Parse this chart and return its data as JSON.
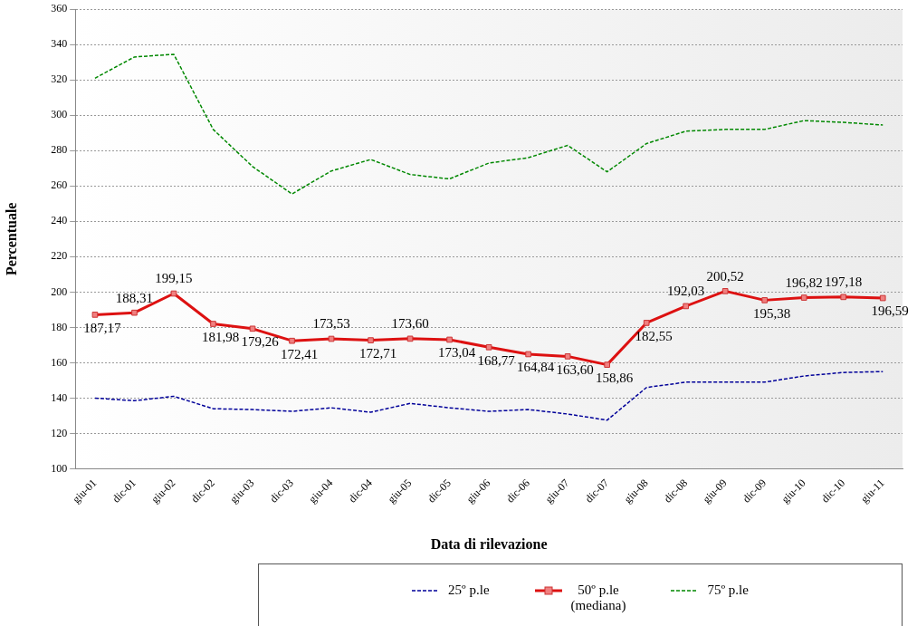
{
  "chart_data": {
    "type": "line",
    "xlabel": "Data di rilevazione",
    "ylabel": "Percentuale",
    "categories": [
      "giu-01",
      "dic-01",
      "giu-02",
      "dic-02",
      "giu-03",
      "dic-03",
      "giu-04",
      "dic-04",
      "giu-05",
      "dic-05",
      "giu-06",
      "dic-06",
      "giu-07",
      "dic-07",
      "giu-08",
      "dic-08",
      "giu-09",
      "dic-09",
      "giu-10",
      "dic-10",
      "giu-11"
    ],
    "series": [
      {
        "name": "25º p.le",
        "color": "#000099",
        "line_style": "dashed",
        "marker": "none",
        "values": [
          140,
          138.5,
          141,
          134,
          133.5,
          132.5,
          134.5,
          132,
          137,
          134.5,
          132.5,
          133.5,
          131,
          127.5,
          146,
          149,
          149,
          149,
          152.5,
          154.5,
          155
        ]
      },
      {
        "name": "50º p.le\n(mediana)",
        "color": "#dd1111",
        "line_style": "solid",
        "marker": "square",
        "values": [
          187.17,
          188.31,
          199.15,
          181.98,
          179.26,
          172.41,
          173.53,
          172.71,
          173.6,
          173.04,
          168.77,
          164.84,
          163.6,
          158.86,
          182.55,
          192.03,
          200.52,
          195.38,
          196.82,
          197.18,
          196.59
        ],
        "value_labels": [
          "187,17",
          "188,31",
          "199,15",
          "181,98",
          "179,26",
          "172,41",
          "173,53",
          "172,71",
          "173,60",
          "173,04",
          "168,77",
          "164,84",
          "163,60",
          "158,86",
          "182,55",
          "192,03",
          "200,52",
          "195,38",
          "196,82",
          "197,18",
          "196,59"
        ]
      },
      {
        "name": "75º p.le",
        "color": "#008800",
        "line_style": "dashed",
        "marker": "none",
        "values": [
          321,
          333,
          334.5,
          292,
          271,
          255.5,
          268.5,
          275,
          266.5,
          264,
          273,
          276,
          283,
          268,
          284,
          291,
          292,
          292,
          297,
          296,
          294.5
        ]
      }
    ],
    "ylim": [
      100,
      360
    ],
    "yticks": [
      100,
      120,
      140,
      160,
      180,
      200,
      220,
      240,
      260,
      280,
      300,
      320,
      340,
      360
    ],
    "grid": "y",
    "legend": "bottom"
  }
}
